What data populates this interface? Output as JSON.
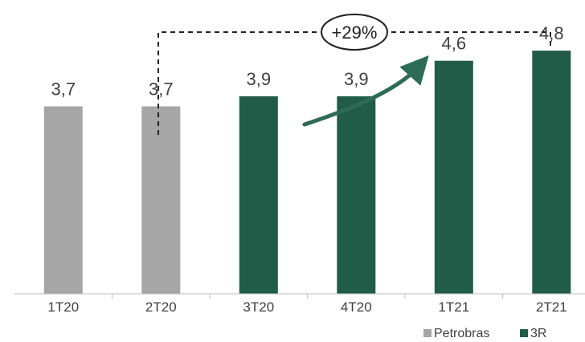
{
  "chart_data": {
    "type": "bar",
    "categories": [
      "1T20",
      "2T20",
      "3T20",
      "4T20",
      "1T21",
      "2T21"
    ],
    "values": [
      3.7,
      3.7,
      3.9,
      3.9,
      4.6,
      4.8
    ],
    "value_labels": [
      "3,7",
      "3,7",
      "3,9",
      "3,9",
      "4,6",
      "4,8"
    ],
    "bar_series": [
      "Petrobras",
      "Petrobras",
      "3R",
      "3R",
      "3R",
      "3R"
    ],
    "legend": [
      {
        "name": "Petrobras",
        "color": "#a6a6a6"
      },
      {
        "name": "3R",
        "color": "#215c49"
      }
    ],
    "legend_position": "bottom-right",
    "annotation": {
      "text": "+29%",
      "from_category": "2T20",
      "to_category": "2T21"
    },
    "trend_arrow_color": "#2e6b57",
    "axis_color": "#bfbfbf",
    "grid": false,
    "ylim": [
      0,
      5.8
    ]
  }
}
